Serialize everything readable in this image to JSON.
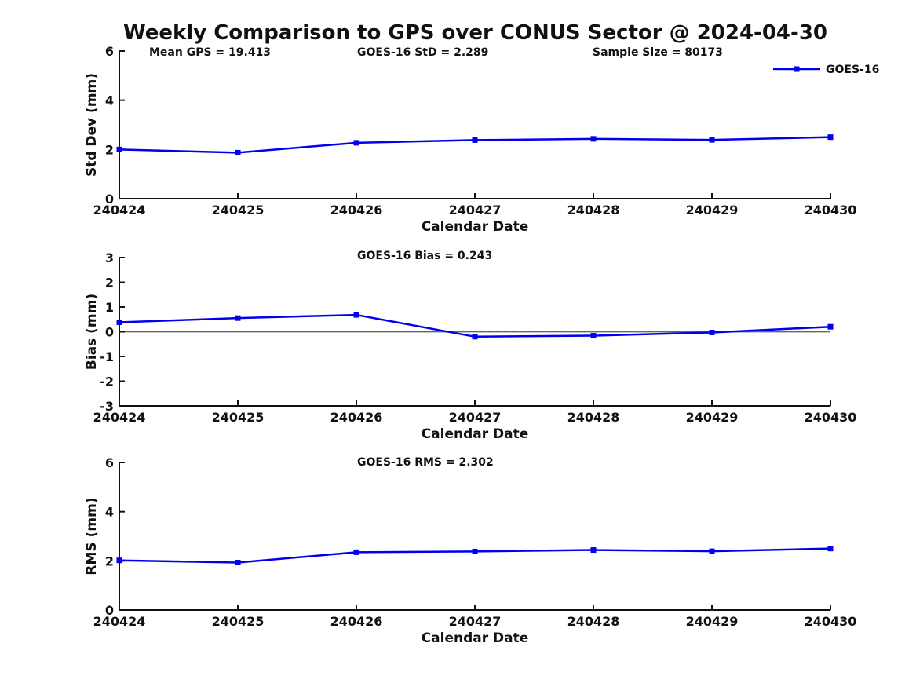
{
  "figure": {
    "title": "Weekly Comparison to GPS over CONUS Sector @ 2024-04-30"
  },
  "colors": {
    "background": "#ffffff",
    "series": "#0000ee",
    "axis": "#111111",
    "text": "#111111",
    "zero_line": "#666666"
  },
  "legend": {
    "label": "GOES-16"
  },
  "chart_data": [
    {
      "id": "std-dev",
      "type": "line",
      "series_name": "GOES-16",
      "categories": [
        "240424",
        "240425",
        "240426",
        "240427",
        "240428",
        "240429",
        "240430"
      ],
      "values": [
        2.0,
        1.87,
        2.27,
        2.38,
        2.43,
        2.39,
        2.5
      ],
      "xlabel": "Calendar Date",
      "ylabel": "Std Dev (mm)",
      "ylim": [
        0,
        6
      ],
      "yticks": [
        0,
        2,
        4,
        6
      ],
      "zero_line": false,
      "show_legend": true,
      "legend_position": "top-right",
      "grid": false,
      "annotations": [
        {
          "text": "Mean GPS = 19.413",
          "x": 190
        },
        {
          "text": "GOES-16 StD = 2.289",
          "x": 455
        },
        {
          "text": "Sample Size = 80173",
          "x": 755
        }
      ]
    },
    {
      "id": "bias",
      "type": "line",
      "series_name": "GOES-16",
      "categories": [
        "240424",
        "240425",
        "240426",
        "240427",
        "240428",
        "240429",
        "240430"
      ],
      "values": [
        0.38,
        0.55,
        0.68,
        -0.2,
        -0.16,
        -0.03,
        0.2
      ],
      "xlabel": "Calendar Date",
      "ylabel": "Bias (mm)",
      "ylim": [
        -3,
        3
      ],
      "yticks": [
        -3,
        -2,
        -1,
        0,
        1,
        2,
        3
      ],
      "zero_line": true,
      "show_legend": false,
      "grid": false,
      "annotations": [
        {
          "text": "GOES-16 Bias  = 0.243",
          "x": 455
        }
      ]
    },
    {
      "id": "rms",
      "type": "line",
      "series_name": "GOES-16",
      "categories": [
        "240424",
        "240425",
        "240426",
        "240427",
        "240428",
        "240429",
        "240430"
      ],
      "values": [
        2.02,
        1.93,
        2.35,
        2.38,
        2.44,
        2.39,
        2.5
      ],
      "xlabel": "Calendar Date",
      "ylabel": "RMS (mm)",
      "ylim": [
        0,
        6
      ],
      "yticks": [
        0,
        2,
        4,
        6
      ],
      "zero_line": false,
      "show_legend": false,
      "grid": false,
      "annotations": [
        {
          "text": "GOES-16 RMS = 2.302",
          "x": 455
        }
      ]
    }
  ]
}
